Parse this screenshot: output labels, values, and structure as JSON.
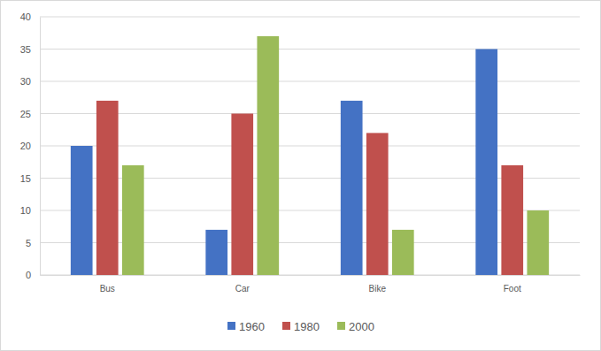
{
  "chart_data": {
    "type": "bar",
    "categories": [
      "Bus",
      "Car",
      "Bike",
      "Foot"
    ],
    "series": [
      {
        "name": "1960",
        "color": "#4472c4",
        "values": [
          20,
          7,
          27,
          35
        ]
      },
      {
        "name": "1980",
        "color": "#c0504d",
        "values": [
          27,
          25,
          22,
          17
        ]
      },
      {
        "name": "2000",
        "color": "#9bbb59",
        "values": [
          17,
          37,
          7,
          10
        ]
      }
    ],
    "ylim": [
      0,
      40
    ],
    "yticks": [
      0,
      5,
      10,
      15,
      20,
      25,
      30,
      35,
      40
    ],
    "grid": true,
    "legend": "bottom"
  }
}
